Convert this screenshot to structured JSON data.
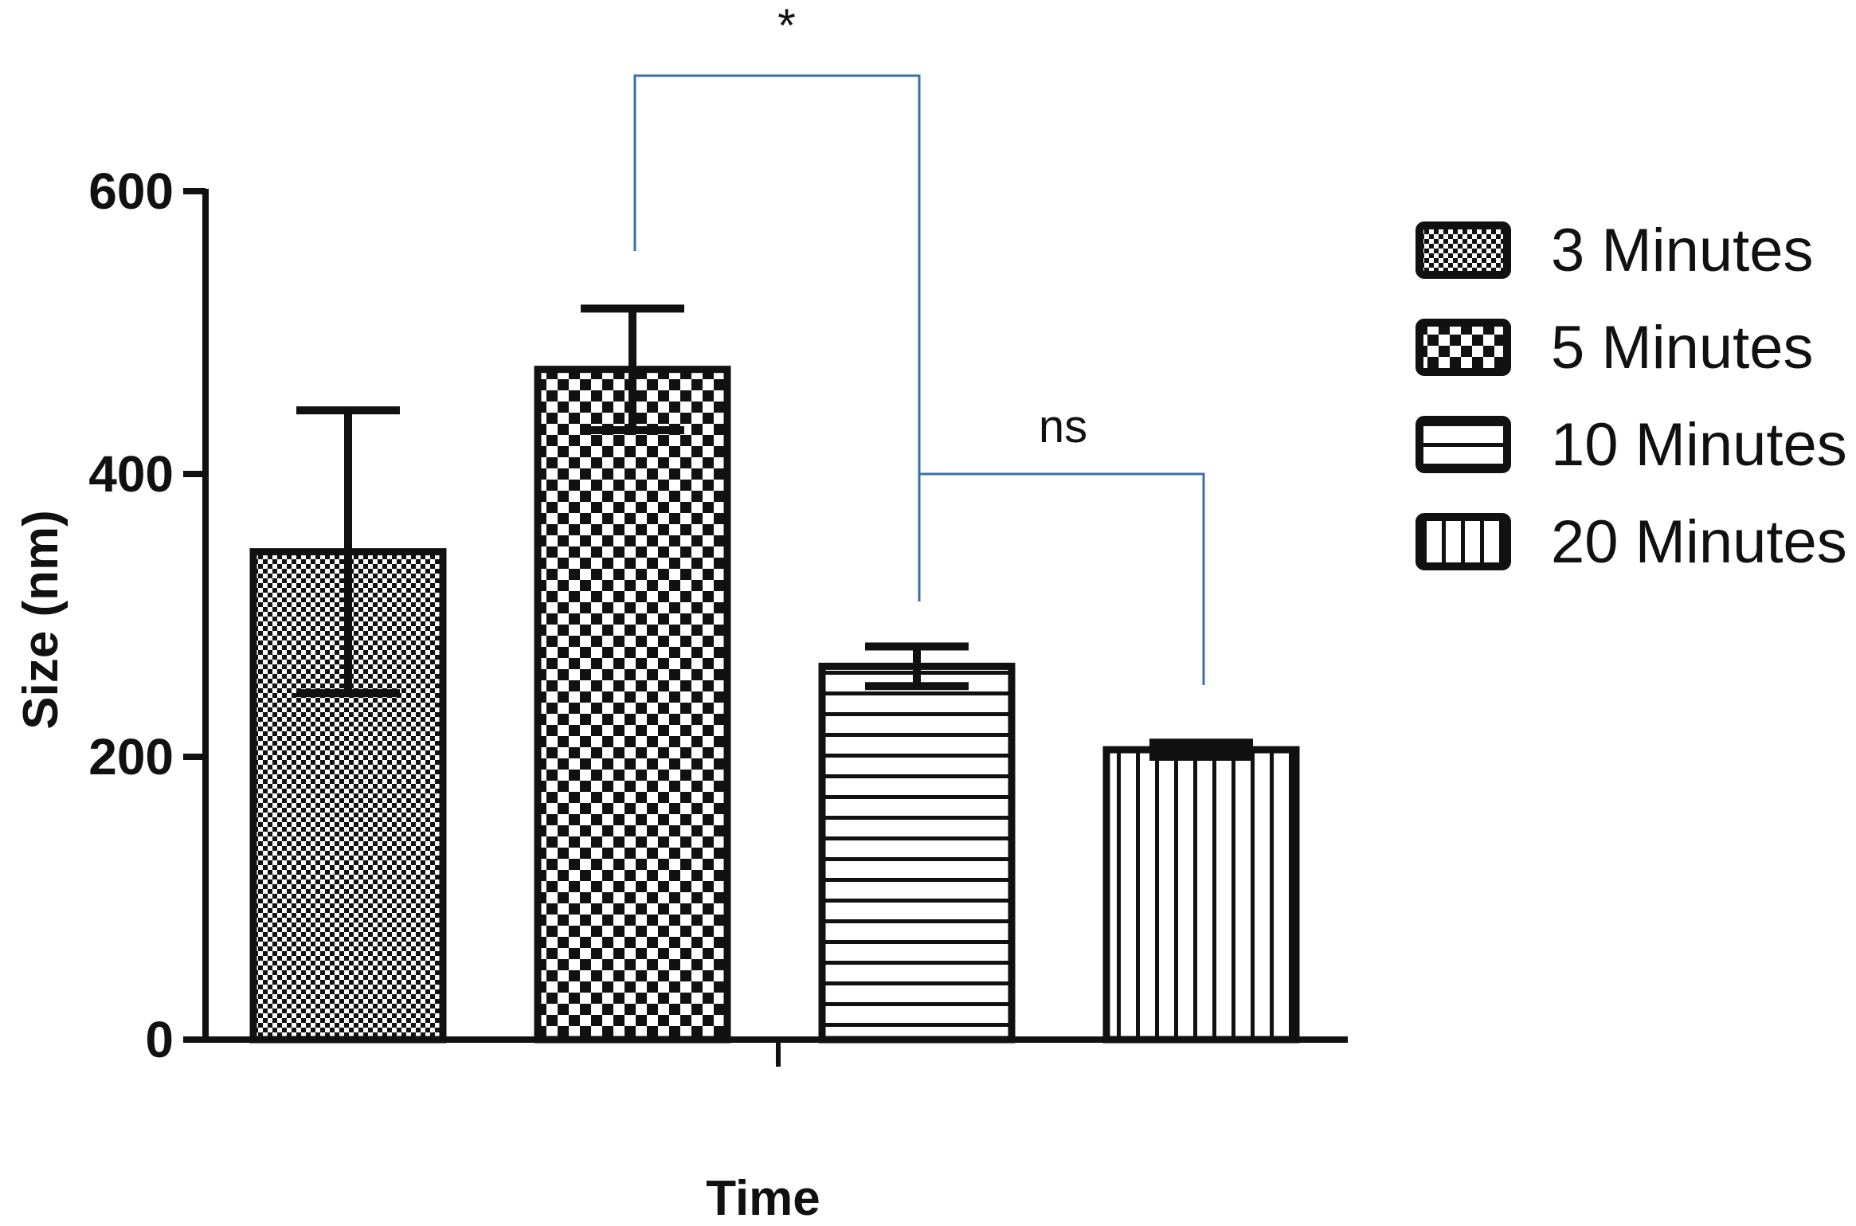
{
  "chart_data": {
    "type": "bar",
    "categories": [
      "3 Minutes",
      "5 Minutes",
      "10 Minutes",
      "20 Minutes"
    ],
    "values": [
      345,
      474,
      264,
      205
    ],
    "errors": [
      100,
      43,
      14,
      5
    ],
    "patterns": [
      "fine-checker",
      "checker",
      "horizontal-lines",
      "vertical-lines"
    ],
    "xlabel": "Time",
    "ylabel": "Size (nm)",
    "ylim": [
      0,
      600
    ],
    "yticks": [
      0,
      200,
      400,
      600
    ],
    "legend": {
      "position": "right",
      "entries": [
        "3 Minutes",
        "5 Minutes",
        "10 Minutes",
        "20 Minutes"
      ]
    },
    "annotations": [
      {
        "text": "*",
        "from": "5 Minutes",
        "to": "10 Minutes"
      },
      {
        "text": "ns",
        "from": "10 Minutes",
        "to": "20 Minutes"
      }
    ],
    "colors": {
      "bar_stroke": "#111111",
      "bracket": "#3a6fa8",
      "axis": "#111111"
    },
    "grid": false
  }
}
